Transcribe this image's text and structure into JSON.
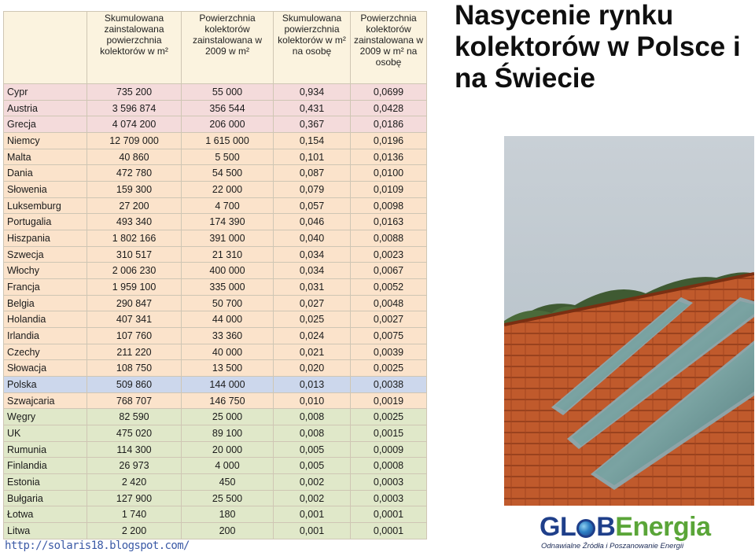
{
  "title": "Nasycenie rynku kolektorów w Polsce i na Świecie",
  "table": {
    "headers": [
      "",
      "Skumulowana zainstalowana powierzchnia kolektorów w m²",
      "Powierzchnia kolektorów zainstalowana w 2009 w m²",
      "Skumulowana powierzchnia kolektorów w m² na osobę",
      "Powierzchnia kolektorów zainstalowana w 2009 w m² na osobę"
    ],
    "rows": [
      {
        "group": "pink",
        "cells": [
          "Cypr",
          "735 200",
          "55 000",
          "0,934",
          "0,0699"
        ]
      },
      {
        "group": "pink",
        "cells": [
          "Austria",
          "3 596 874",
          "356 544",
          "0,431",
          "0,0428"
        ]
      },
      {
        "group": "pink",
        "cells": [
          "Grecja",
          "4 074 200",
          "206 000",
          "0,367",
          "0,0186"
        ]
      },
      {
        "group": "peach",
        "cells": [
          "Niemcy",
          "12 709 000",
          "1 615 000",
          "0,154",
          "0,0196"
        ]
      },
      {
        "group": "peach",
        "cells": [
          "Malta",
          "40 860",
          "5 500",
          "0,101",
          "0,0136"
        ]
      },
      {
        "group": "peach",
        "cells": [
          "Dania",
          "472 780",
          "54 500",
          "0,087",
          "0,0100"
        ]
      },
      {
        "group": "peach",
        "cells": [
          "Słowenia",
          "159 300",
          "22 000",
          "0,079",
          "0,0109"
        ]
      },
      {
        "group": "peach",
        "cells": [
          "Luksemburg",
          "27 200",
          "4 700",
          "0,057",
          "0,0098"
        ]
      },
      {
        "group": "peach",
        "cells": [
          "Portugalia",
          "493 340",
          "174 390",
          "0,046",
          "0,0163"
        ]
      },
      {
        "group": "peach",
        "cells": [
          "Hiszpania",
          "1 802 166",
          "391 000",
          "0,040",
          "0,0088"
        ]
      },
      {
        "group": "peach",
        "cells": [
          "Szwecja",
          "310 517",
          "21 310",
          "0,034",
          "0,0023"
        ]
      },
      {
        "group": "peach",
        "cells": [
          "Włochy",
          "2 006 230",
          "400 000",
          "0,034",
          "0,0067"
        ]
      },
      {
        "group": "peach",
        "cells": [
          "Francja",
          "1 959 100",
          "335 000",
          "0,031",
          "0,0052"
        ]
      },
      {
        "group": "peach",
        "cells": [
          "Belgia",
          "290 847",
          "50 700",
          "0,027",
          "0,0048"
        ]
      },
      {
        "group": "peach",
        "cells": [
          "Holandia",
          "407 341",
          "44 000",
          "0,025",
          "0,0027"
        ]
      },
      {
        "group": "peach",
        "cells": [
          "Irlandia",
          "107 760",
          "33 360",
          "0,024",
          "0,0075"
        ]
      },
      {
        "group": "peach",
        "cells": [
          "Czechy",
          "211 220",
          "40 000",
          "0,021",
          "0,0039"
        ]
      },
      {
        "group": "peach",
        "cells": [
          "Słowacja",
          "108 750",
          "13 500",
          "0,020",
          "0,0025"
        ]
      },
      {
        "group": "blue",
        "cells": [
          "Polska",
          "509 860",
          "144 000",
          "0,013",
          "0,0038"
        ]
      },
      {
        "group": "peach",
        "cells": [
          "Szwajcaria",
          "768 707",
          "146 750",
          "0,010",
          "0,0019"
        ]
      },
      {
        "group": "green",
        "cells": [
          "Węgry",
          "82 590",
          "25 000",
          "0,008",
          "0,0025"
        ]
      },
      {
        "group": "green",
        "cells": [
          "UK",
          "475 020",
          "89 100",
          "0,008",
          "0,0015"
        ]
      },
      {
        "group": "green",
        "cells": [
          "Rumunia",
          "114 300",
          "20 000",
          "0,005",
          "0,0009"
        ]
      },
      {
        "group": "green",
        "cells": [
          "Finlandia",
          "26 973",
          "4 000",
          "0,005",
          "0,0008"
        ]
      },
      {
        "group": "green",
        "cells": [
          "Estonia",
          "2 420",
          "450",
          "0,002",
          "0,0003"
        ]
      },
      {
        "group": "green",
        "cells": [
          "Bułgaria",
          "127 900",
          "25 500",
          "0,002",
          "0,0003"
        ]
      },
      {
        "group": "green",
        "cells": [
          "Łotwa",
          "1 740",
          "180",
          "0,001",
          "0,0001"
        ]
      },
      {
        "group": "green",
        "cells": [
          "Litwa",
          "2 200",
          "200",
          "0,001",
          "0,0001"
        ]
      }
    ]
  },
  "source_link": "http://solaris18.blogspot.com/",
  "photo": {
    "icon": "solar-collectors-on-roof-photo"
  },
  "logo": {
    "part1": "GL",
    "part2": "B",
    "part3": "Energia",
    "tagline": "Odnawialne Źródła i Poszanowanie Energii"
  },
  "colors": {
    "row_pink": "#f4dbdb",
    "row_peach": "#fbe3cb",
    "row_blue": "#ccd7ec",
    "row_green": "#e0e8c9",
    "logo_blue": "#1f3f8a",
    "logo_green": "#5aa538"
  }
}
